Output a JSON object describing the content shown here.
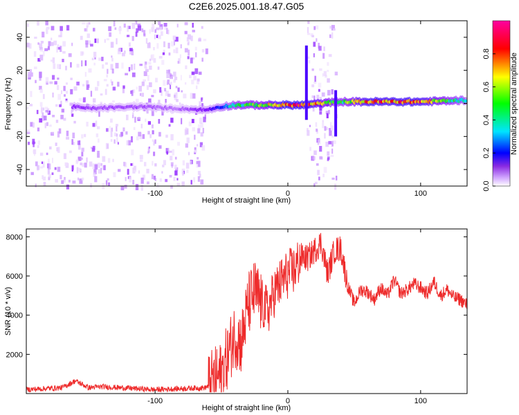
{
  "title": "C2E6.2025.001.18.47.G05",
  "colors": {
    "snr_line": "#ee2b2b",
    "frame": "#000000",
    "background": "#ffffff"
  },
  "chart_data": [
    {
      "type": "heatmap",
      "xlabel": "Height of straight line (km)",
      "ylabel": "Frequency (Hz)",
      "xlim": [
        -197,
        135
      ],
      "ylim": [
        -50,
        50
      ],
      "x_ticks": [
        "-100",
        "0",
        "100"
      ],
      "y_ticks": [
        "-40",
        "-20",
        "0",
        "20",
        "40"
      ],
      "colorbar": {
        "label": "Normalized spectral amplitude",
        "range": [
          0,
          1
        ],
        "ticks": [
          "0.0",
          "0.2",
          "0.4",
          "0.6",
          "0.8"
        ],
        "colormap": [
          "#ffffff",
          "#c080ff",
          "#7b00ff",
          "#0000ff",
          "#00e5ff",
          "#00ff00",
          "#ffff00",
          "#ff0000",
          "#ff00a0"
        ]
      },
      "noise_bands_km": [
        [
          -197,
          -62
        ],
        [
          14,
          36
        ]
      ],
      "carrier_track": [
        {
          "x": -162,
          "y": -2,
          "amp": 0.25
        },
        {
          "x": -150,
          "y": -3,
          "amp": 0.2
        },
        {
          "x": -110,
          "y": -2,
          "amp": 0.2
        },
        {
          "x": -85,
          "y": -3,
          "amp": 0.15
        },
        {
          "x": -62,
          "y": -4,
          "amp": 0.25
        },
        {
          "x": -50,
          "y": -2,
          "amp": 0.4
        },
        {
          "x": -40,
          "y": -1,
          "amp": 0.6
        },
        {
          "x": -20,
          "y": -1,
          "amp": 0.7
        },
        {
          "x": 0,
          "y": -1,
          "amp": 0.95
        },
        {
          "x": 12,
          "y": -1,
          "amp": 0.95
        },
        {
          "x": 38,
          "y": 1,
          "amp": 0.6
        },
        {
          "x": 60,
          "y": 1,
          "amp": 0.9
        },
        {
          "x": 100,
          "y": 1,
          "amp": 0.9
        },
        {
          "x": 135,
          "y": 2,
          "amp": 0.5
        }
      ]
    },
    {
      "type": "line",
      "xlabel": "Height of straight line (km)",
      "ylabel": "SNR (10 * v/v)",
      "xlim": [
        -197,
        135
      ],
      "ylim": [
        0,
        8400
      ],
      "x_ticks": [
        "-100",
        "0",
        "100"
      ],
      "y_ticks": [
        "2000",
        "4000",
        "6000",
        "8000"
      ],
      "series": [
        {
          "values_x": [
            -197,
            -170,
            -160,
            -150,
            -140,
            -100,
            -62,
            -50,
            -45,
            -40,
            -35,
            -30,
            -25,
            -20,
            -15,
            -10,
            -5,
            0,
            5,
            10,
            15,
            20,
            25,
            30,
            35,
            40,
            45,
            50,
            55,
            60,
            65,
            70,
            75,
            80,
            85,
            90,
            95,
            100,
            105,
            110,
            115,
            120,
            125,
            130,
            135
          ],
          "values_y": [
            200,
            300,
            650,
            300,
            350,
            200,
            300,
            1000,
            2000,
            3000,
            2600,
            4500,
            5200,
            4600,
            4200,
            5200,
            5700,
            6100,
            6300,
            7000,
            6900,
            7300,
            7700,
            6100,
            7300,
            7400,
            5500,
            4600,
            5300,
            5200,
            4800,
            5400,
            5000,
            5800,
            5100,
            5300,
            5600,
            5400,
            5100,
            5700,
            5000,
            5300,
            4900,
            4800,
            4500
          ]
        }
      ]
    }
  ]
}
